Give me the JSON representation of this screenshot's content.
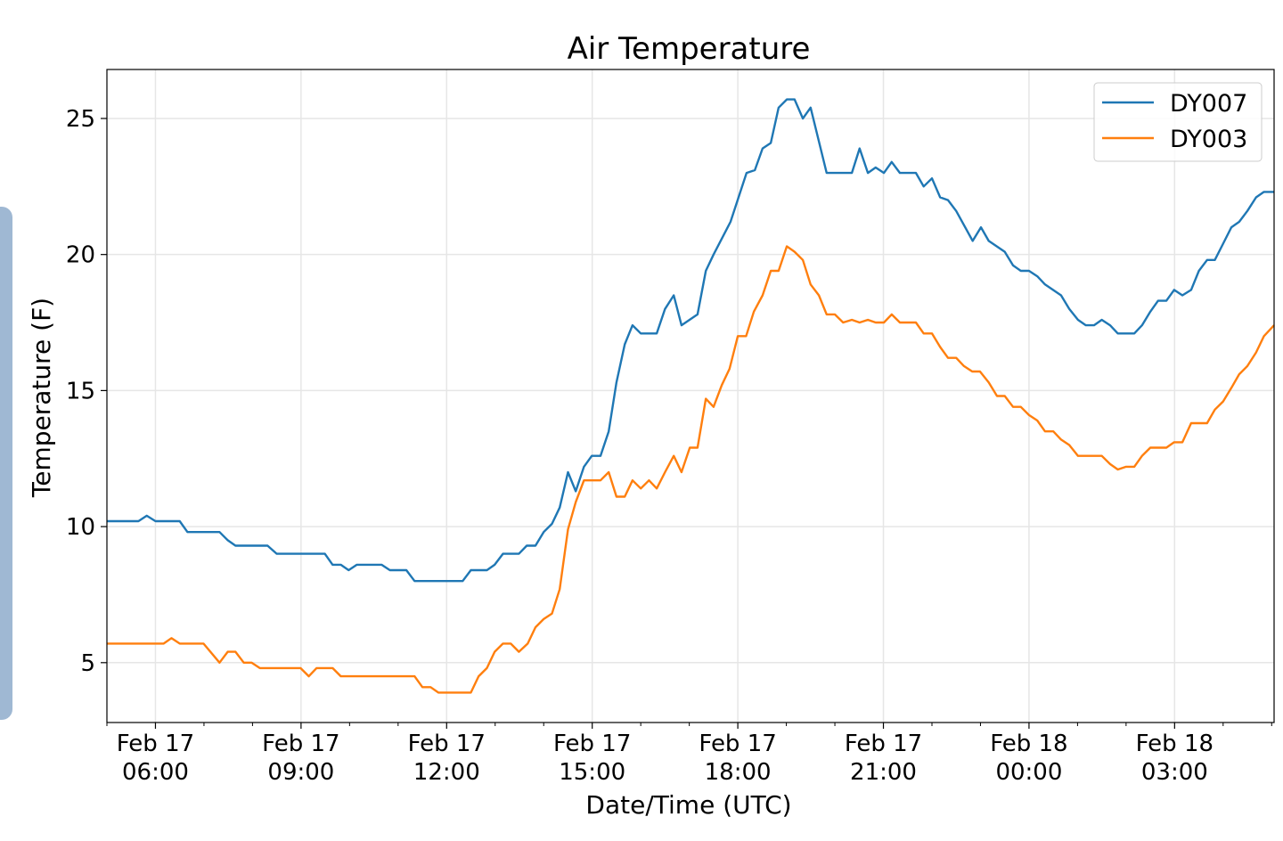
{
  "chart_data": {
    "type": "line",
    "title": "Air Temperature",
    "xlabel": "Date/Time (UTC)",
    "ylabel": "Temperature (F)",
    "x_units": "hours since Feb 17 00:00 UTC",
    "xlim": [
      5.0,
      29.05
    ],
    "ylim": [
      2.8,
      26.8
    ],
    "grid": true,
    "legend_position": "top-right",
    "xticks": [
      {
        "value": 6,
        "line1": "Feb 17",
        "line2": "06:00"
      },
      {
        "value": 9,
        "line1": "Feb 17",
        "line2": "09:00"
      },
      {
        "value": 12,
        "line1": "Feb 17",
        "line2": "12:00"
      },
      {
        "value": 15,
        "line1": "Feb 17",
        "line2": "15:00"
      },
      {
        "value": 18,
        "line1": "Feb 17",
        "line2": "18:00"
      },
      {
        "value": 21,
        "line1": "Feb 17",
        "line2": "21:00"
      },
      {
        "value": 24,
        "line1": "Feb 18",
        "line2": "00:00"
      },
      {
        "value": 27,
        "line1": "Feb 18",
        "line2": "03:00"
      }
    ],
    "yticks": [
      {
        "value": 5,
        "label": "5"
      },
      {
        "value": 10,
        "label": "10"
      },
      {
        "value": 15,
        "label": "15"
      },
      {
        "value": 20,
        "label": "20"
      },
      {
        "value": 25,
        "label": "25"
      }
    ],
    "series": [
      {
        "name": "DY007",
        "color": "#1f77b4",
        "x": [
          5.01,
          5.65,
          5.82,
          6.0,
          6.5,
          6.66,
          7.32,
          7.49,
          7.65,
          8.31,
          8.5,
          9.49,
          9.65,
          9.82,
          9.98,
          10.15,
          10.66,
          10.83,
          11.17,
          11.34,
          12.33,
          12.5,
          12.83,
          12.99,
          13.16,
          13.49,
          13.65,
          13.83,
          14.0,
          14.17,
          14.33,
          14.5,
          14.66,
          14.83,
          14.99,
          15.17,
          15.34,
          15.5,
          15.67,
          15.83,
          16.0,
          16.33,
          16.5,
          16.68,
          16.84,
          17.17,
          17.34,
          17.5,
          17.85,
          18.18,
          18.35,
          18.51,
          18.68,
          18.84,
          19.01,
          19.17,
          19.34,
          19.5,
          19.83,
          20.35,
          20.51,
          20.68,
          20.84,
          21.01,
          21.17,
          21.34,
          21.67,
          21.83,
          22.0,
          22.17,
          22.33,
          22.5,
          22.84,
          23.01,
          23.17,
          23.5,
          23.67,
          23.83,
          24.0,
          24.17,
          24.33,
          24.66,
          24.83,
          25.01,
          25.17,
          25.34,
          25.5,
          25.67,
          25.83,
          26.17,
          26.33,
          26.5,
          26.66,
          26.83,
          26.99,
          27.16,
          27.34,
          27.5,
          27.67,
          27.83,
          28.0,
          28.17,
          28.33,
          28.5,
          28.68,
          28.84,
          29.05
        ],
        "y": [
          10.2,
          10.2,
          10.4,
          10.2,
          10.2,
          9.8,
          9.8,
          9.5,
          9.3,
          9.3,
          9.0,
          9.0,
          8.6,
          8.6,
          8.4,
          8.6,
          8.6,
          8.4,
          8.4,
          8.0,
          8.0,
          8.4,
          8.4,
          8.6,
          9.0,
          9.0,
          9.3,
          9.3,
          9.8,
          10.1,
          10.7,
          12.0,
          11.3,
          12.2,
          12.6,
          12.6,
          13.5,
          15.3,
          16.7,
          17.4,
          17.1,
          17.1,
          18.0,
          18.5,
          17.4,
          17.8,
          19.4,
          20.0,
          21.2,
          23.0,
          23.1,
          23.9,
          24.1,
          25.4,
          25.7,
          25.7,
          25.0,
          25.4,
          23.0,
          23.0,
          23.9,
          23.0,
          23.2,
          23.0,
          23.4,
          23.0,
          23.0,
          22.5,
          22.8,
          22.1,
          22.0,
          21.6,
          20.5,
          21.0,
          20.5,
          20.1,
          19.6,
          19.4,
          19.4,
          19.2,
          18.9,
          18.5,
          18.0,
          17.6,
          17.4,
          17.4,
          17.6,
          17.4,
          17.1,
          17.1,
          17.4,
          17.9,
          18.3,
          18.3,
          18.7,
          18.5,
          18.7,
          19.4,
          19.8,
          19.8,
          20.4,
          21.0,
          21.2,
          21.6,
          22.1,
          22.3,
          22.3
        ]
      },
      {
        "name": "DY003",
        "color": "#ff7f0e",
        "x": [
          5.01,
          6.17,
          6.33,
          6.5,
          6.99,
          7.32,
          7.49,
          7.65,
          7.82,
          7.98,
          8.15,
          8.99,
          9.16,
          9.32,
          9.65,
          9.82,
          11.34,
          11.5,
          11.67,
          11.83,
          12.5,
          12.66,
          12.83,
          12.99,
          13.16,
          13.32,
          13.49,
          13.67,
          13.83,
          14.0,
          14.17,
          14.33,
          14.5,
          14.66,
          14.83,
          15.17,
          15.34,
          15.5,
          15.67,
          15.83,
          16.0,
          16.17,
          16.33,
          16.5,
          16.68,
          16.84,
          17.01,
          17.17,
          17.34,
          17.5,
          17.67,
          17.83,
          18.0,
          18.17,
          18.33,
          18.51,
          18.68,
          18.84,
          19.01,
          19.17,
          19.34,
          19.5,
          19.67,
          19.83,
          20.0,
          20.17,
          20.35,
          20.51,
          20.68,
          20.84,
          21.01,
          21.17,
          21.34,
          21.67,
          21.83,
          22.0,
          22.17,
          22.33,
          22.5,
          22.66,
          22.83,
          22.99,
          23.17,
          23.34,
          23.5,
          23.67,
          23.83,
          24.0,
          24.17,
          24.33,
          24.5,
          24.66,
          24.83,
          25.01,
          25.5,
          25.67,
          25.83,
          26.0,
          26.17,
          26.33,
          26.5,
          26.83,
          26.99,
          27.16,
          27.34,
          27.67,
          27.83,
          28.0,
          28.17,
          28.33,
          28.5,
          28.68,
          28.84,
          29.05
        ],
        "y": [
          5.7,
          5.7,
          5.9,
          5.7,
          5.7,
          5.0,
          5.4,
          5.4,
          5.0,
          5.0,
          4.8,
          4.8,
          4.5,
          4.8,
          4.8,
          4.5,
          4.5,
          4.1,
          4.1,
          3.9,
          3.9,
          4.5,
          4.8,
          5.4,
          5.7,
          5.7,
          5.4,
          5.7,
          6.3,
          6.6,
          6.8,
          7.7,
          9.9,
          10.9,
          11.7,
          11.7,
          12.0,
          11.1,
          11.1,
          11.7,
          11.4,
          11.7,
          11.4,
          12.0,
          12.6,
          12.0,
          12.9,
          12.9,
          14.7,
          14.4,
          15.2,
          15.8,
          17.0,
          17.0,
          17.9,
          18.5,
          19.4,
          19.4,
          20.3,
          20.1,
          19.8,
          18.9,
          18.5,
          17.8,
          17.8,
          17.5,
          17.6,
          17.5,
          17.6,
          17.5,
          17.5,
          17.8,
          17.5,
          17.5,
          17.1,
          17.1,
          16.6,
          16.2,
          16.2,
          15.9,
          15.7,
          15.7,
          15.3,
          14.8,
          14.8,
          14.4,
          14.4,
          14.1,
          13.9,
          13.5,
          13.5,
          13.2,
          13.0,
          12.6,
          12.6,
          12.3,
          12.1,
          12.2,
          12.2,
          12.6,
          12.9,
          12.9,
          13.1,
          13.1,
          13.8,
          13.8,
          14.3,
          14.6,
          15.1,
          15.6,
          15.9,
          16.4,
          17.0,
          17.4
        ]
      }
    ]
  }
}
